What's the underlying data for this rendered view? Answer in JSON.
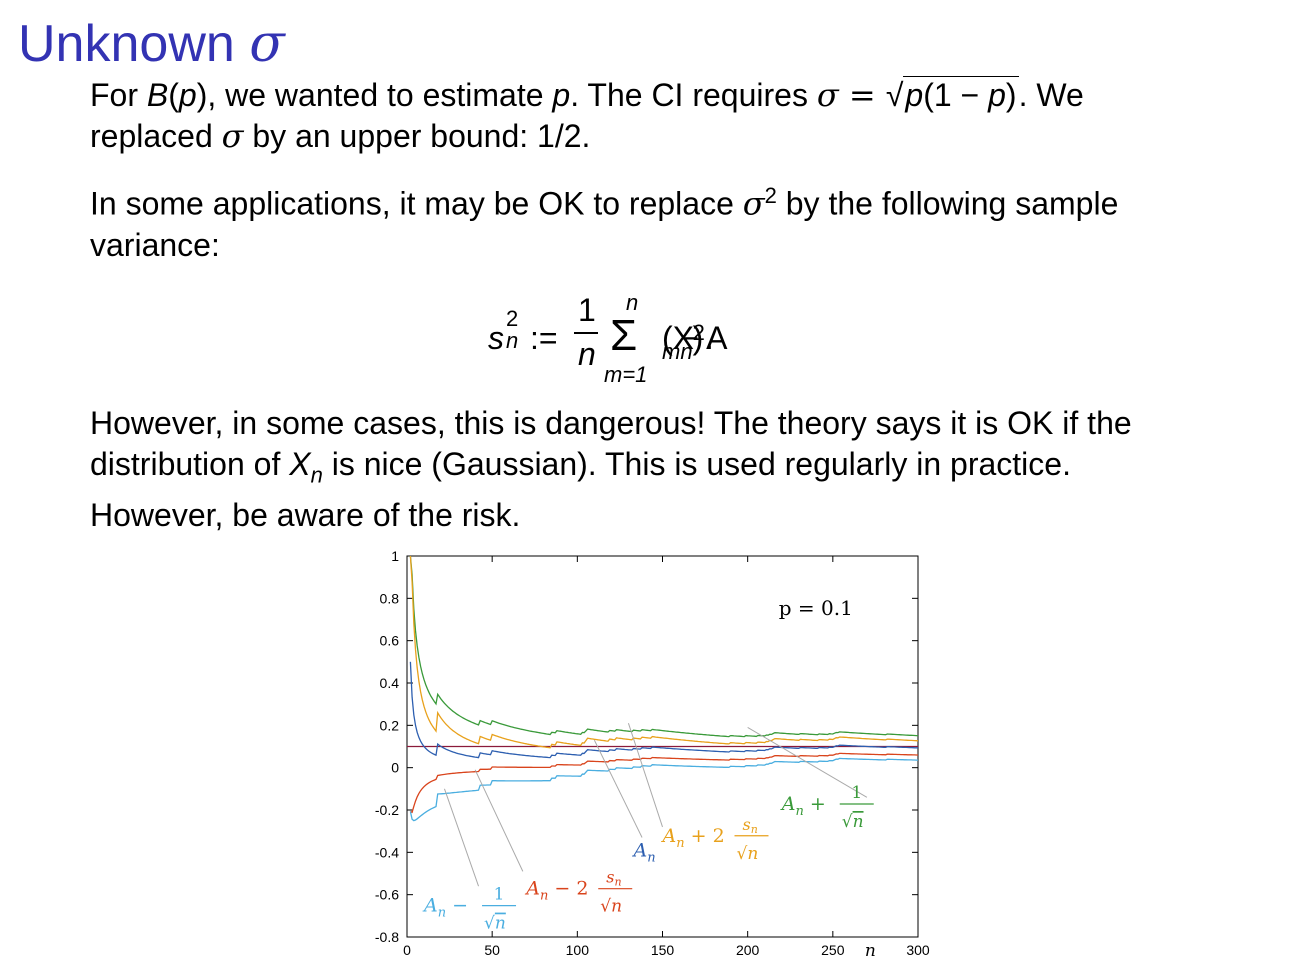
{
  "slide": {
    "title_text": "Unknown",
    "title_symbol": "σ",
    "p1": {
      "a": "For ",
      "b": "B",
      "c": "(",
      "d": "p",
      "e": "), we wanted to estimate ",
      "f": "p",
      "g": ". The CI requires ",
      "h": "σ",
      "i": " = ",
      "j": "p",
      "k": "(1 − ",
      "l": "p",
      "m": ")",
      "n": ". We",
      "o": "replaced ",
      "q": "σ",
      "r": " by an upper bound: 1/2."
    },
    "p2": {
      "a": "In some applications, it may be OK to replace ",
      "b": "σ",
      "c": "2",
      "d": " by the following sample",
      "e": "variance:"
    },
    "formula": {
      "s": "s",
      "sup": "2",
      "sub": "n",
      "assign": ":=",
      "num": "1",
      "den": "n",
      "sum": "Σ",
      "upper": "n",
      "lower": "m=1",
      "body": "(X",
      "body_sub": "m",
      "body_mid": " − A",
      "body_sub2": "n",
      "body_end": ")",
      "body_sup": "2",
      "period": "."
    },
    "p3": {
      "a": "However, in some cases, this is dangerous! The theory says it is OK if the",
      "b": "distribution of ",
      "c": "X",
      "d": "n",
      "e": " is nice (Gaussian). This is used regularly in practice.",
      "f": "However, be aware of the risk."
    }
  },
  "chart_data": {
    "type": "line",
    "xlabel": "n",
    "annotation": "p = 0.1",
    "xlim": [
      0,
      300
    ],
    "ylim": [
      -0.8,
      1
    ],
    "x_ticks": [
      "0",
      "50",
      "100",
      "150",
      "200",
      "250",
      "300"
    ],
    "y_ticks": [
      "1",
      "0.8",
      "0.6",
      "0.4",
      "0.2",
      "0",
      "-0.2",
      "-0.4",
      "-0.6",
      "-0.8"
    ],
    "reference_line": 0.1,
    "series": [
      {
        "label_parts": [
          "A",
          "n",
          " + ",
          "1",
          "√",
          "n"
        ],
        "color": "#3a9a3a",
        "kind": "upper1",
        "offset": 0.09
      },
      {
        "label_parts": [
          "A",
          "n",
          " + 2",
          "s",
          "n",
          "√",
          "n"
        ],
        "color": "#e8a11c",
        "kind": "upper2",
        "offset": 0.07
      },
      {
        "label_parts": [
          "A",
          "n"
        ],
        "color": "#2d5fb0",
        "kind": "mean",
        "offset": 0.105
      },
      {
        "label_parts": [
          "A",
          "n",
          " − 2",
          "s",
          "n",
          "√",
          "n"
        ],
        "color": "#d9441c",
        "kind": "lower2",
        "offset": 0.075
      },
      {
        "label_parts": [
          "A",
          "n",
          " − ",
          "1",
          "√",
          "n"
        ],
        "color": "#4aaee0",
        "kind": "lower1",
        "offset": 0.055
      }
    ],
    "colors": {
      "reference": "#8b1a3a",
      "axis": "#000000"
    }
  }
}
